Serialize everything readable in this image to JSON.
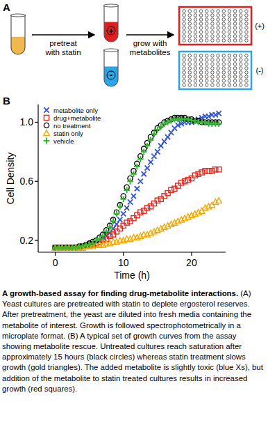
{
  "panel_a": {
    "label": "A",
    "step1": [
      "pretreat",
      "with statin"
    ],
    "step2": [
      "grow with",
      "metabolites"
    ],
    "tube_plus": "+",
    "tube_minus": "-",
    "plate_plus": "(+)",
    "plate_minus": "(-)"
  },
  "panel_b": {
    "label": "B"
  },
  "chart_data": {
    "type": "scatter",
    "x_label": "Time (h)",
    "y_label": "Cell Density",
    "x": [
      0,
      0.5,
      1,
      1.5,
      2,
      2.5,
      3,
      3.5,
      4,
      4.5,
      5,
      5.5,
      6,
      6.5,
      7,
      7.5,
      8,
      8.5,
      9,
      9.5,
      10,
      10.5,
      11,
      11.5,
      12,
      12.5,
      13,
      13.5,
      14,
      14.5,
      15,
      15.5,
      16,
      16.5,
      17,
      17.5,
      18,
      18.5,
      19,
      19.5,
      20,
      20.5,
      21,
      21.5,
      22,
      22.5,
      23,
      23.5,
      24
    ],
    "series": [
      {
        "name": "metabolite only",
        "color": "#3355cc",
        "marker": "x",
        "values": [
          0.15,
          0.15,
          0.15,
          0.15,
          0.15,
          0.15,
          0.15,
          0.15,
          0.16,
          0.16,
          0.17,
          0.18,
          0.19,
          0.2,
          0.22,
          0.23,
          0.25,
          0.28,
          0.31,
          0.34,
          0.38,
          0.42,
          0.46,
          0.5,
          0.55,
          0.6,
          0.65,
          0.69,
          0.73,
          0.77,
          0.8,
          0.84,
          0.87,
          0.9,
          0.93,
          0.96,
          0.98,
          0.99,
          1.0,
          1.0,
          1.0,
          1.01,
          1.02,
          1.03,
          1.04,
          1.04,
          1.05,
          1.05,
          1.06
        ]
      },
      {
        "name": "drug+metabolite",
        "color": "#e0281e",
        "marker": "square",
        "values": [
          0.15,
          0.15,
          0.15,
          0.15,
          0.15,
          0.15,
          0.15,
          0.15,
          0.16,
          0.16,
          0.17,
          0.17,
          0.18,
          0.19,
          0.2,
          0.21,
          0.23,
          0.24,
          0.26,
          0.28,
          0.3,
          0.32,
          0.33,
          0.35,
          0.37,
          0.39,
          0.4,
          0.42,
          0.43,
          0.45,
          0.47,
          0.48,
          0.5,
          0.52,
          0.54,
          0.55,
          0.57,
          0.59,
          0.6,
          0.61,
          0.62,
          0.64,
          0.65,
          0.66,
          0.67,
          0.67,
          0.67,
          0.68,
          0.68
        ]
      },
      {
        "name": "no treatment",
        "color": "#000000",
        "marker": "circle",
        "values": [
          0.15,
          0.15,
          0.15,
          0.15,
          0.15,
          0.15,
          0.15,
          0.16,
          0.16,
          0.17,
          0.18,
          0.19,
          0.2,
          0.22,
          0.24,
          0.27,
          0.3,
          0.34,
          0.39,
          0.44,
          0.5,
          0.56,
          0.62,
          0.67,
          0.72,
          0.77,
          0.82,
          0.86,
          0.9,
          0.93,
          0.96,
          0.98,
          1.0,
          1.01,
          1.02,
          1.03,
          1.03,
          1.03,
          1.03,
          1.02,
          1.02,
          1.01,
          1.01,
          1.0,
          1.0,
          1.0,
          1.0,
          1.0,
          1.0
        ]
      },
      {
        "name": "statin only",
        "color": "#f0a800",
        "marker": "triangle",
        "values": [
          0.15,
          0.15,
          0.15,
          0.15,
          0.15,
          0.15,
          0.15,
          0.15,
          0.15,
          0.16,
          0.16,
          0.16,
          0.17,
          0.17,
          0.17,
          0.18,
          0.18,
          0.19,
          0.19,
          0.2,
          0.2,
          0.21,
          0.21,
          0.22,
          0.22,
          0.23,
          0.24,
          0.24,
          0.25,
          0.26,
          0.27,
          0.28,
          0.29,
          0.3,
          0.31,
          0.32,
          0.33,
          0.34,
          0.35,
          0.36,
          0.37,
          0.38,
          0.39,
          0.4,
          0.42,
          0.43,
          0.44,
          0.46,
          0.47
        ]
      },
      {
        "name": "vehicle",
        "color": "#33bb33",
        "marker": "plus",
        "values": [
          0.15,
          0.15,
          0.15,
          0.15,
          0.15,
          0.15,
          0.15,
          0.16,
          0.16,
          0.17,
          0.17,
          0.18,
          0.2,
          0.21,
          0.23,
          0.26,
          0.29,
          0.33,
          0.38,
          0.43,
          0.48,
          0.54,
          0.6,
          0.65,
          0.7,
          0.75,
          0.8,
          0.84,
          0.88,
          0.92,
          0.95,
          0.97,
          0.99,
          1.0,
          1.01,
          1.02,
          1.02,
          1.02,
          1.02,
          1.02,
          1.01,
          1.01,
          1.0,
          1.0,
          1.0,
          0.99,
          0.99,
          0.99,
          0.99
        ]
      }
    ],
    "xlim": [
      -2.5,
      25
    ],
    "ylim": [
      0.12,
      1.12
    ],
    "xticks": [
      0,
      10,
      20
    ],
    "yticks": [
      0.2,
      0.6,
      {
        "value": 1,
        "label": "1.0"
      }
    ],
    "legend": "upper left",
    "grid": false
  },
  "caption": {
    "title": "A growth-based assay for finding drug-metabolite interactions.",
    "text": " (A) Yeast cultures are pretreated with statin to deplete ergosterol reserves. After pretreatment, the yeast are diluted into fresh media containing the metabolite of interest. Growth is followed spectrophotometrically in a microplate format. (B) A typical set of growth curves from the assay showing metabolite rescue. Untreated cultures reach saturation after approximately 15 hours (black circles) whereas statin treatment slows growth (gold triangles). The added metabolite is slightly toxic (blue Xs), but addition of the metabolite to statin treated cultures results in increased growth (red squares)."
  }
}
